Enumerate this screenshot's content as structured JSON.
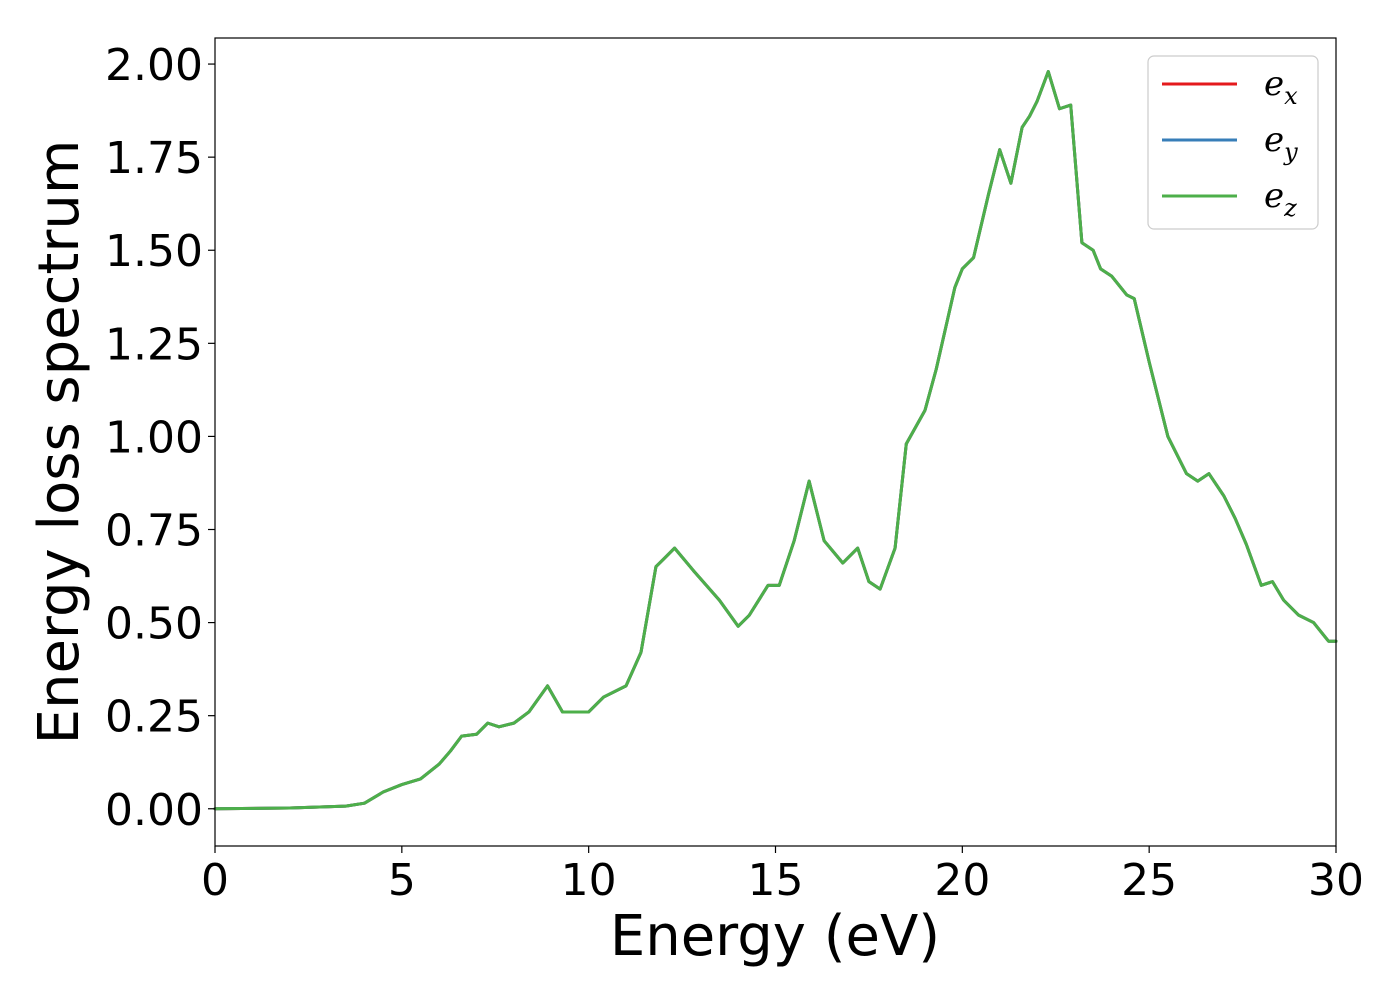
{
  "chart_data": {
    "type": "line",
    "title": "",
    "xlabel": "Energy (eV)",
    "ylabel": "Energy loss spectrum",
    "xlim": [
      0,
      30
    ],
    "ylim": [
      -0.1,
      2.07
    ],
    "xticks": [
      0,
      5,
      10,
      15,
      20,
      25,
      30
    ],
    "xtick_labels": [
      "0",
      "5",
      "10",
      "15",
      "20",
      "25",
      "30"
    ],
    "yticks": [
      0.0,
      0.25,
      0.5,
      0.75,
      1.0,
      1.25,
      1.5,
      1.75,
      2.0
    ],
    "ytick_labels": [
      "0.00",
      "0.25",
      "0.50",
      "0.75",
      "1.00",
      "1.25",
      "1.50",
      "1.75",
      "2.00"
    ],
    "grid": false,
    "legend_position": "top-right",
    "x": [
      0,
      2,
      3.5,
      4.0,
      4.5,
      5.0,
      5.5,
      6.0,
      6.3,
      6.6,
      7.0,
      7.3,
      7.6,
      8.0,
      8.4,
      8.9,
      9.3,
      10.0,
      10.4,
      11.0,
      11.4,
      11.8,
      12.0,
      12.3,
      12.8,
      13.5,
      14.0,
      14.3,
      14.8,
      15.1,
      15.5,
      15.9,
      16.3,
      16.8,
      17.2,
      17.5,
      17.8,
      18.2,
      18.5,
      19.0,
      19.3,
      19.8,
      20.0,
      20.3,
      20.7,
      21.0,
      21.3,
      21.6,
      21.8,
      22.0,
      22.3,
      22.6,
      22.9,
      23.2,
      23.5,
      23.7,
      24.0,
      24.4,
      24.6,
      25.0,
      25.5,
      26.0,
      26.3,
      26.6,
      27.0,
      27.3,
      27.6,
      28.0,
      28.3,
      28.6,
      29.0,
      29.4,
      29.8,
      30.0
    ],
    "series": [
      {
        "name": "e",
        "name_subscript": "x",
        "color": "#e41a1c",
        "values": [
          0.0,
          0.002,
          0.007,
          0.015,
          0.045,
          0.065,
          0.08,
          0.12,
          0.155,
          0.195,
          0.2,
          0.23,
          0.22,
          0.23,
          0.26,
          0.33,
          0.26,
          0.26,
          0.3,
          0.33,
          0.42,
          0.65,
          0.67,
          0.7,
          0.64,
          0.56,
          0.49,
          0.52,
          0.6,
          0.6,
          0.72,
          0.88,
          0.72,
          0.66,
          0.7,
          0.61,
          0.59,
          0.7,
          0.98,
          1.07,
          1.18,
          1.4,
          1.45,
          1.48,
          1.65,
          1.77,
          1.68,
          1.83,
          1.86,
          1.9,
          1.98,
          1.88,
          1.89,
          1.52,
          1.5,
          1.45,
          1.43,
          1.38,
          1.37,
          1.2,
          1.0,
          0.9,
          0.88,
          0.9,
          0.84,
          0.78,
          0.71,
          0.6,
          0.61,
          0.56,
          0.52,
          0.5,
          0.45,
          0.45
        ]
      },
      {
        "name": "e",
        "name_subscript": "y",
        "color": "#377eb8",
        "values": [
          0.0,
          0.002,
          0.007,
          0.015,
          0.045,
          0.065,
          0.08,
          0.12,
          0.155,
          0.195,
          0.2,
          0.23,
          0.22,
          0.23,
          0.26,
          0.33,
          0.26,
          0.26,
          0.3,
          0.33,
          0.42,
          0.65,
          0.67,
          0.7,
          0.64,
          0.56,
          0.49,
          0.52,
          0.6,
          0.6,
          0.72,
          0.88,
          0.72,
          0.66,
          0.7,
          0.61,
          0.59,
          0.7,
          0.98,
          1.07,
          1.18,
          1.4,
          1.45,
          1.48,
          1.65,
          1.77,
          1.68,
          1.83,
          1.86,
          1.9,
          1.98,
          1.88,
          1.89,
          1.52,
          1.5,
          1.45,
          1.43,
          1.38,
          1.37,
          1.2,
          1.0,
          0.9,
          0.88,
          0.9,
          0.84,
          0.78,
          0.71,
          0.6,
          0.61,
          0.56,
          0.52,
          0.5,
          0.45,
          0.45
        ]
      },
      {
        "name": "e",
        "name_subscript": "z",
        "color": "#4daf4a",
        "values": [
          0.0,
          0.002,
          0.007,
          0.015,
          0.045,
          0.065,
          0.08,
          0.12,
          0.155,
          0.195,
          0.2,
          0.23,
          0.22,
          0.23,
          0.26,
          0.33,
          0.26,
          0.26,
          0.3,
          0.33,
          0.42,
          0.65,
          0.67,
          0.7,
          0.64,
          0.56,
          0.49,
          0.52,
          0.6,
          0.6,
          0.72,
          0.88,
          0.72,
          0.66,
          0.7,
          0.61,
          0.59,
          0.7,
          0.98,
          1.07,
          1.18,
          1.4,
          1.45,
          1.48,
          1.65,
          1.77,
          1.68,
          1.83,
          1.86,
          1.9,
          1.98,
          1.88,
          1.89,
          1.52,
          1.5,
          1.45,
          1.43,
          1.38,
          1.37,
          1.2,
          1.0,
          0.9,
          0.88,
          0.9,
          0.84,
          0.78,
          0.71,
          0.6,
          0.61,
          0.56,
          0.52,
          0.5,
          0.45,
          0.45
        ]
      }
    ]
  }
}
